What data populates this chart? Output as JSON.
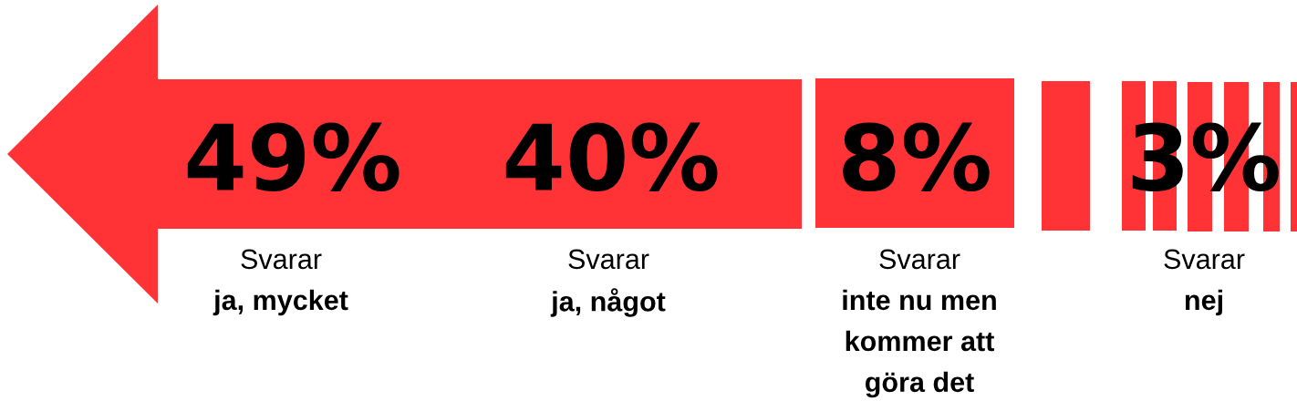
{
  "chart_data": {
    "type": "other",
    "categories": [
      "Svarar\nja, mycket",
      "Svarar\nja, något",
      "Svarar\ninte nu men\nkommer att\ngöra det",
      "Svarar\nnej"
    ],
    "values": [
      49,
      40,
      8,
      3
    ],
    "value_labels": [
      "49%",
      "40%",
      "8%",
      "3%"
    ],
    "color": "#ff3336"
  }
}
